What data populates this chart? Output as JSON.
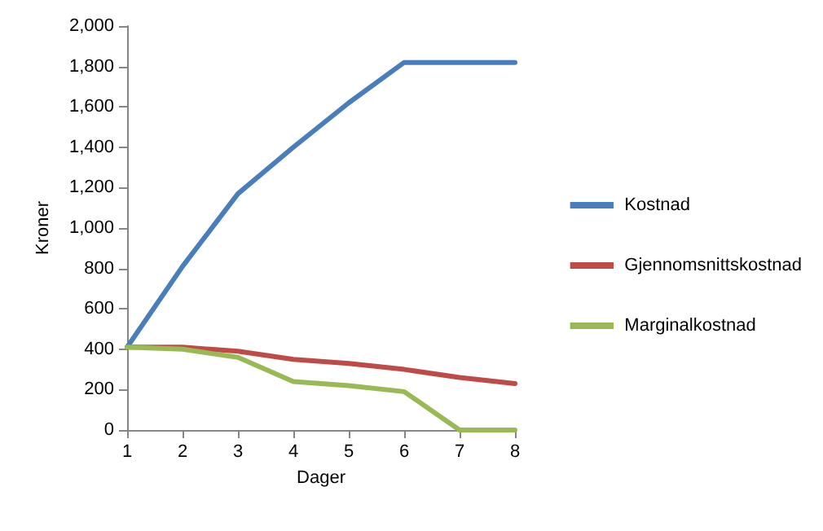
{
  "chart_data": {
    "type": "line",
    "xlabel": "Dager",
    "ylabel": "Kroner",
    "x": [
      1,
      2,
      3,
      4,
      5,
      6,
      7,
      8
    ],
    "series": [
      {
        "name": "Kostnad",
        "color": "#4a7ebb",
        "values": [
          410,
          810,
          1170,
          1400,
          1620,
          1820,
          1820,
          1820
        ]
      },
      {
        "name": "Gjennomsnittskostnad",
        "color": "#be4b48",
        "values": [
          410,
          410,
          390,
          350,
          330,
          300,
          260,
          230
        ]
      },
      {
        "name": "Marginalkostnad",
        "color": "#98b954",
        "values": [
          410,
          400,
          360,
          240,
          220,
          190,
          0,
          0
        ]
      }
    ],
    "xlim": [
      1,
      8
    ],
    "xticks": [
      1,
      2,
      3,
      4,
      5,
      6,
      7,
      8
    ],
    "ylim": [
      0,
      2000
    ],
    "yticks": [
      0,
      200,
      400,
      600,
      800,
      {
        "value": 1000,
        "label": "1,000"
      },
      {
        "value": 1200,
        "label": "1,200"
      },
      {
        "value": 1400,
        "label": "1,400"
      },
      {
        "value": 1600,
        "label": "1,600"
      },
      {
        "value": 1800,
        "label": "1,800"
      },
      {
        "value": 2000,
        "label": "2,000"
      }
    ],
    "grid": false,
    "legend": "right",
    "marker": "none",
    "line_style": "solid"
  }
}
